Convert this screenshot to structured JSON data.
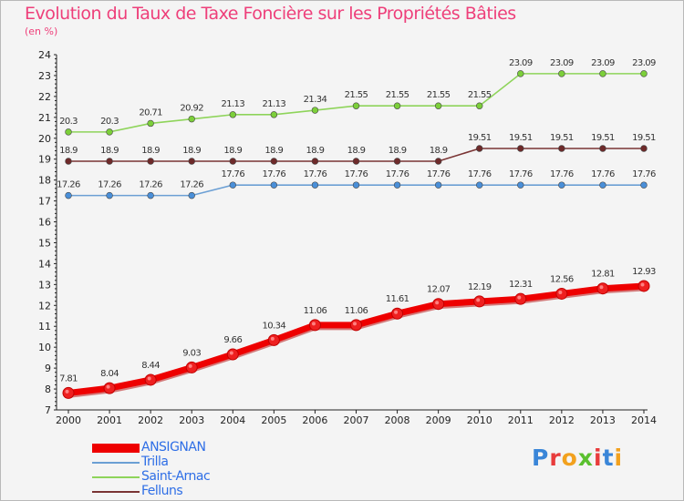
{
  "title": "Evolution du Taux de Taxe Foncière sur les Propriétés Bâties",
  "subtitle": "(en %)",
  "logo": {
    "letters": [
      "P",
      "r",
      "o",
      "x",
      "i",
      "t",
      "i"
    ],
    "colors": [
      "#3a86d8",
      "#e83c3c",
      "#f2a11e",
      "#5ac02e",
      "#e83c3c",
      "#3a86d8",
      "#f2a11e"
    ]
  },
  "chart_data": {
    "type": "line",
    "x": [
      2000,
      2001,
      2002,
      2003,
      2004,
      2005,
      2006,
      2007,
      2008,
      2009,
      2010,
      2011,
      2012,
      2013,
      2014
    ],
    "xlabels": [
      "2000",
      "2001",
      "2002",
      "2003",
      "2004",
      "2005",
      "2006",
      "2007",
      "2008",
      "2009",
      "2010",
      "2011",
      "2012",
      "2013",
      "2014"
    ],
    "ylim": [
      7,
      24
    ],
    "yticks": [
      7,
      8,
      9,
      10,
      11,
      12,
      13,
      14,
      15,
      16,
      17,
      18,
      19,
      20,
      21,
      22,
      23,
      24
    ],
    "ylabels": [
      "7",
      "8",
      "9",
      "10",
      "11",
      "12",
      "13",
      "14",
      "15",
      "16",
      "17",
      "18",
      "19",
      "20",
      "21",
      "22",
      "23",
      "24"
    ],
    "grid": false,
    "legend_position": "bottom-left",
    "series": [
      {
        "name": "ANSIGNAN",
        "color": "#ee0000",
        "marker": "#ee3333",
        "thick": true,
        "values": [
          7.81,
          8.04,
          8.44,
          9.03,
          9.66,
          10.34,
          11.06,
          11.06,
          11.61,
          12.07,
          12.19,
          12.31,
          12.56,
          12.81,
          12.93
        ],
        "labels": [
          "7.81",
          "8.04",
          "8.44",
          "9.03",
          "9.66",
          "10.34",
          "11.06",
          "11.06",
          "11.61",
          "12.07",
          "12.19",
          "12.31",
          "12.56",
          "12.81",
          "12.93"
        ]
      },
      {
        "name": "Trilla",
        "color": "#6b9fd4",
        "marker": "#4a8fd8",
        "thick": false,
        "values": [
          17.26,
          17.26,
          17.26,
          17.26,
          17.76,
          17.76,
          17.76,
          17.76,
          17.76,
          17.76,
          17.76,
          17.76,
          17.76,
          17.76,
          17.76
        ],
        "labels": [
          "17.26",
          "17.26",
          "17.26",
          "17.26",
          "17.76",
          "17.76",
          "17.76",
          "17.76",
          "17.76",
          "17.76",
          "17.76",
          "17.76",
          "17.76",
          "17.76",
          "17.76"
        ]
      },
      {
        "name": "Saint-Arnac",
        "color": "#8ed45a",
        "marker": "#7ccf3a",
        "thick": false,
        "values": [
          20.3,
          20.3,
          20.71,
          20.92,
          21.13,
          21.13,
          21.34,
          21.55,
          21.55,
          21.55,
          21.55,
          23.09,
          23.09,
          23.09,
          23.09
        ],
        "labels": [
          "20.3",
          "20.3",
          "20.71",
          "20.92",
          "21.13",
          "21.13",
          "21.34",
          "21.55",
          "21.55",
          "21.55",
          "21.55",
          "23.09",
          "23.09",
          "23.09",
          "23.09"
        ]
      },
      {
        "name": "Felluns",
        "color": "#7a3434",
        "marker": "#6e2a2a",
        "thick": false,
        "values": [
          18.9,
          18.9,
          18.9,
          18.9,
          18.9,
          18.9,
          18.9,
          18.9,
          18.9,
          18.9,
          19.51,
          19.51,
          19.51,
          19.51,
          19.51
        ],
        "labels": [
          "18.9",
          "18.9",
          "18.9",
          "18.9",
          "18.9",
          "18.9",
          "18.9",
          "18.9",
          "18.9",
          "18.9",
          "19.51",
          "19.51",
          "19.51",
          "19.51",
          "19.51"
        ]
      }
    ]
  }
}
